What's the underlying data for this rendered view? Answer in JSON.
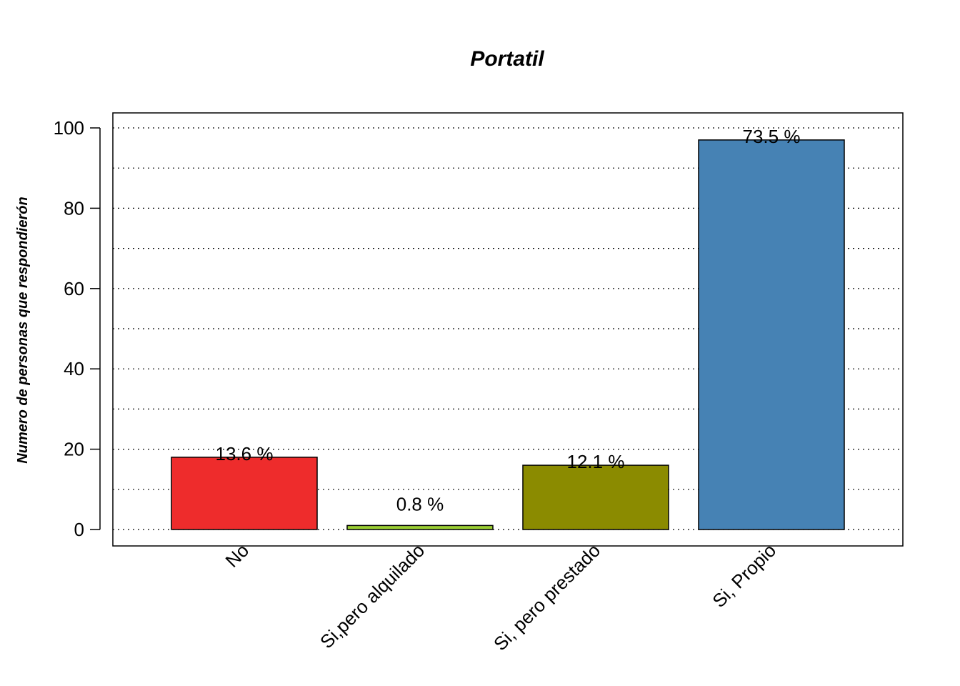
{
  "chart_data": {
    "type": "bar",
    "title": "Portatil",
    "xlabel": "",
    "ylabel": "Numero de personas que respondierón",
    "categories": [
      "No",
      "Si,pero alquilado",
      "Si, pero prestado",
      "Si, Propio"
    ],
    "values": [
      18,
      1,
      16,
      97
    ],
    "data_labels": [
      "13.6 %",
      "0.8 %",
      "12.1 %",
      "73.5 %"
    ],
    "colors": [
      "#EE2C2C",
      "#9ACD32",
      "#8B8B00",
      "#4682B4"
    ],
    "ylim": [
      0,
      104
    ],
    "yticks": [
      0,
      20,
      40,
      60,
      80,
      100
    ],
    "ytick_labels": [
      "0",
      "20",
      "40",
      "60",
      "80",
      "100"
    ],
    "grid": true,
    "legend": "none"
  }
}
